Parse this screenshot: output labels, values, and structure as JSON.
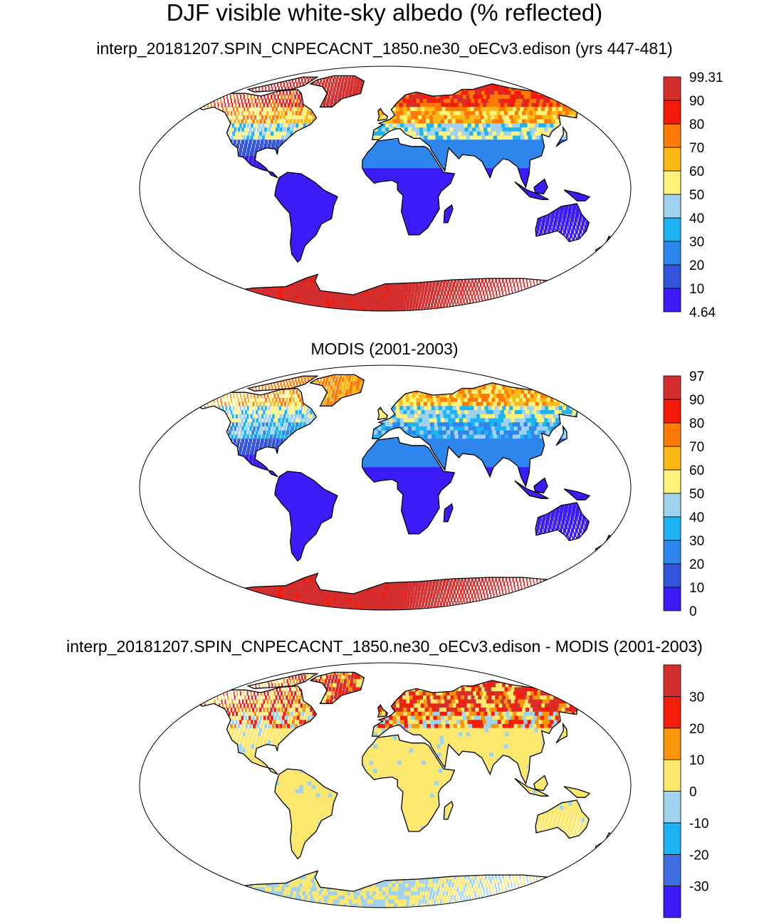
{
  "title": "DJF visible white-sky albedo (% reflected)",
  "chart_data": [
    {
      "type": "heatmap",
      "title": "interp_20181207.SPIN_CNPECACNT_1850.ne30_oECv3.edison (yrs 447-481)",
      "projection": "global map (Robinson-like)",
      "colorbar": {
        "labels": [
          "4.64",
          "10",
          "20",
          "30",
          "40",
          "50",
          "60",
          "70",
          "80",
          "90",
          "99.31"
        ],
        "min": 4.64,
        "max": 99.31,
        "levels": [
          10,
          20,
          30,
          40,
          50,
          60,
          70,
          80,
          90
        ],
        "colors": [
          "#3b1cf7",
          "#3354db",
          "#2e86ec",
          "#1eb4f4",
          "#a0d2f0",
          "#fef27a",
          "#fbb918",
          "#fd7a04",
          "#f61a0a",
          "#d42e2e"
        ]
      }
    },
    {
      "type": "heatmap",
      "title": "MODIS (2001-2003)",
      "projection": "global map (Robinson-like)",
      "colorbar": {
        "labels": [
          "0",
          "10",
          "20",
          "30",
          "40",
          "50",
          "60",
          "70",
          "80",
          "90",
          "97"
        ],
        "min": 0,
        "max": 97,
        "levels": [
          10,
          20,
          30,
          40,
          50,
          60,
          70,
          80,
          90
        ],
        "colors": [
          "#3b1cf7",
          "#3354db",
          "#2e86ec",
          "#1eb4f4",
          "#a0d2f0",
          "#fef27a",
          "#fbb918",
          "#fd7a04",
          "#f61a0a",
          "#d42e2e"
        ]
      }
    },
    {
      "type": "heatmap",
      "title": "interp_20181207.SPIN_CNPECACNT_1850.ne30_oECv3.edison - MODIS (2001-2003)",
      "projection": "global map (Robinson-like)",
      "colorbar": {
        "labels": [
          "-30",
          "-20",
          "-10",
          "0",
          "10",
          "20",
          "30"
        ],
        "levels": [
          -30,
          -20,
          -10,
          0,
          10,
          20,
          30
        ],
        "colors": [
          "#3b1cf7",
          "#3f6fe0",
          "#1eb4f4",
          "#a0d2f0",
          "#fce86e",
          "#f7960a",
          "#f41e0a",
          "#d42e2e"
        ]
      }
    }
  ],
  "colors": {
    "ocean": "#ffffff",
    "coastline": "#000000"
  }
}
